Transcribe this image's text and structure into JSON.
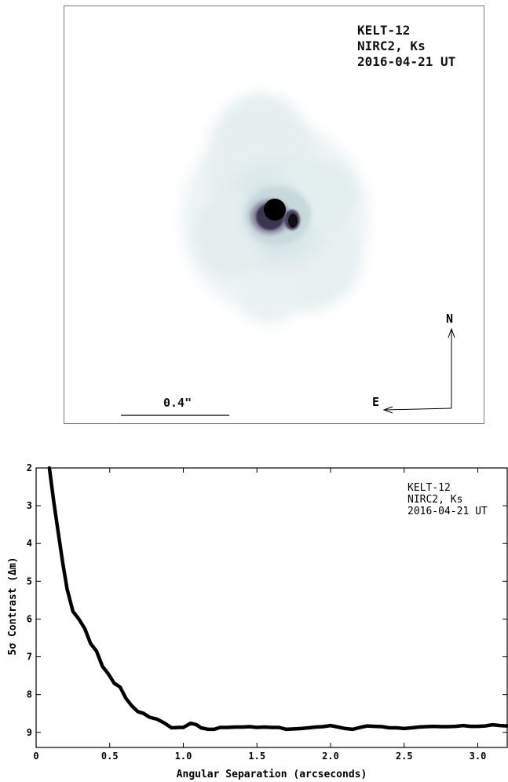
{
  "image_panel": {
    "label_lines": [
      "KELT-12",
      "NIRC2, Ks",
      "2016-04-21 UT"
    ],
    "scale_label": "0.4\"",
    "compass": {
      "north": "N",
      "east": "E"
    }
  },
  "chart_data": {
    "type": "line",
    "annotation_lines": [
      "KELT-12",
      "NIRC2, Ks",
      "2016-04-21 UT"
    ],
    "xlabel": "Angular Separation (arcseconds)",
    "ylabel": "5σ Contrast (Δm)",
    "xlim": [
      0,
      3.2
    ],
    "ylim": [
      9.4,
      2
    ],
    "y_inverted": true,
    "xticks": [
      0,
      0.5,
      1.0,
      1.5,
      2.0,
      2.5,
      3.0
    ],
    "xtick_labels": [
      "0",
      "0.5",
      "1.0",
      "1.5",
      "2.0",
      "2.5",
      "3.0"
    ],
    "yticks": [
      2,
      3,
      4,
      5,
      6,
      7,
      8,
      9
    ],
    "ytick_labels": [
      "2",
      "3",
      "4",
      "5",
      "6",
      "7",
      "8",
      "9"
    ],
    "series": [
      {
        "color": "#000000",
        "x": [
          0.09,
          0.12,
          0.15,
          0.18,
          0.21,
          0.25,
          0.29,
          0.33,
          0.37,
          0.41,
          0.45,
          0.49,
          0.53,
          0.57,
          0.61,
          0.65,
          0.69,
          0.73,
          0.77,
          0.82,
          0.87,
          0.92,
          0.97,
          1.0,
          1.05,
          1.09,
          1.12,
          1.17,
          1.21,
          1.25,
          1.3,
          1.35,
          1.4,
          1.45,
          1.5,
          1.55,
          1.6,
          1.65,
          1.7,
          1.75,
          1.8,
          1.85,
          1.9,
          1.95,
          2.0,
          2.05,
          2.1,
          2.15,
          2.2,
          2.25,
          2.3,
          2.35,
          2.4,
          2.45,
          2.5,
          2.55,
          2.6,
          2.65,
          2.7,
          2.75,
          2.8,
          2.85,
          2.9,
          2.95,
          3.0,
          3.05,
          3.1,
          3.15,
          3.2
        ],
        "y": [
          2.0,
          2.9,
          3.7,
          4.5,
          5.2,
          5.8,
          6.0,
          6.25,
          6.65,
          6.85,
          7.25,
          7.45,
          7.7,
          7.8,
          8.1,
          8.3,
          8.45,
          8.5,
          8.6,
          8.65,
          8.75,
          8.88,
          8.87,
          8.87,
          8.76,
          8.8,
          8.88,
          8.92,
          8.92,
          8.87,
          8.87,
          8.86,
          8.86,
          8.85,
          8.87,
          8.86,
          8.87,
          8.87,
          8.92,
          8.91,
          8.9,
          8.88,
          8.86,
          8.85,
          8.82,
          8.86,
          8.9,
          8.92,
          8.87,
          8.83,
          8.84,
          8.85,
          8.88,
          8.88,
          8.9,
          8.88,
          8.86,
          8.85,
          8.84,
          8.85,
          8.85,
          8.84,
          8.82,
          8.84,
          8.84,
          8.83,
          8.8,
          8.82,
          8.83
        ]
      }
    ]
  }
}
